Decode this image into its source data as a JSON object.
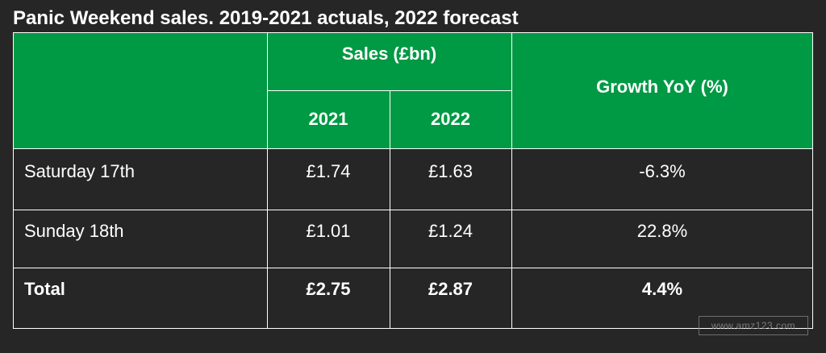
{
  "chart_data": {
    "type": "table",
    "title": "Panic Weekend sales. 2019-2021 actuals, 2022 forecast",
    "header": {
      "group_label": "Sales (£bn)",
      "col_2021": "2021",
      "col_2022": "2022",
      "growth_label": "Growth YoY (%)"
    },
    "rows": [
      {
        "label": "Saturday 17th",
        "v2021": "£1.74",
        "v2022": "£1.63",
        "growth": "-6.3%"
      },
      {
        "label": "Sunday 18th",
        "v2021": "£1.01",
        "v2022": "£1.24",
        "growth": "22.8%"
      },
      {
        "label": "Total",
        "v2021": "£2.75",
        "v2022": "£2.87",
        "growth": "4.4%"
      }
    ]
  },
  "colors": {
    "header_green": "#009944",
    "background": "#262626",
    "text": "#ffffff"
  },
  "watermark": "www.amz123.com"
}
